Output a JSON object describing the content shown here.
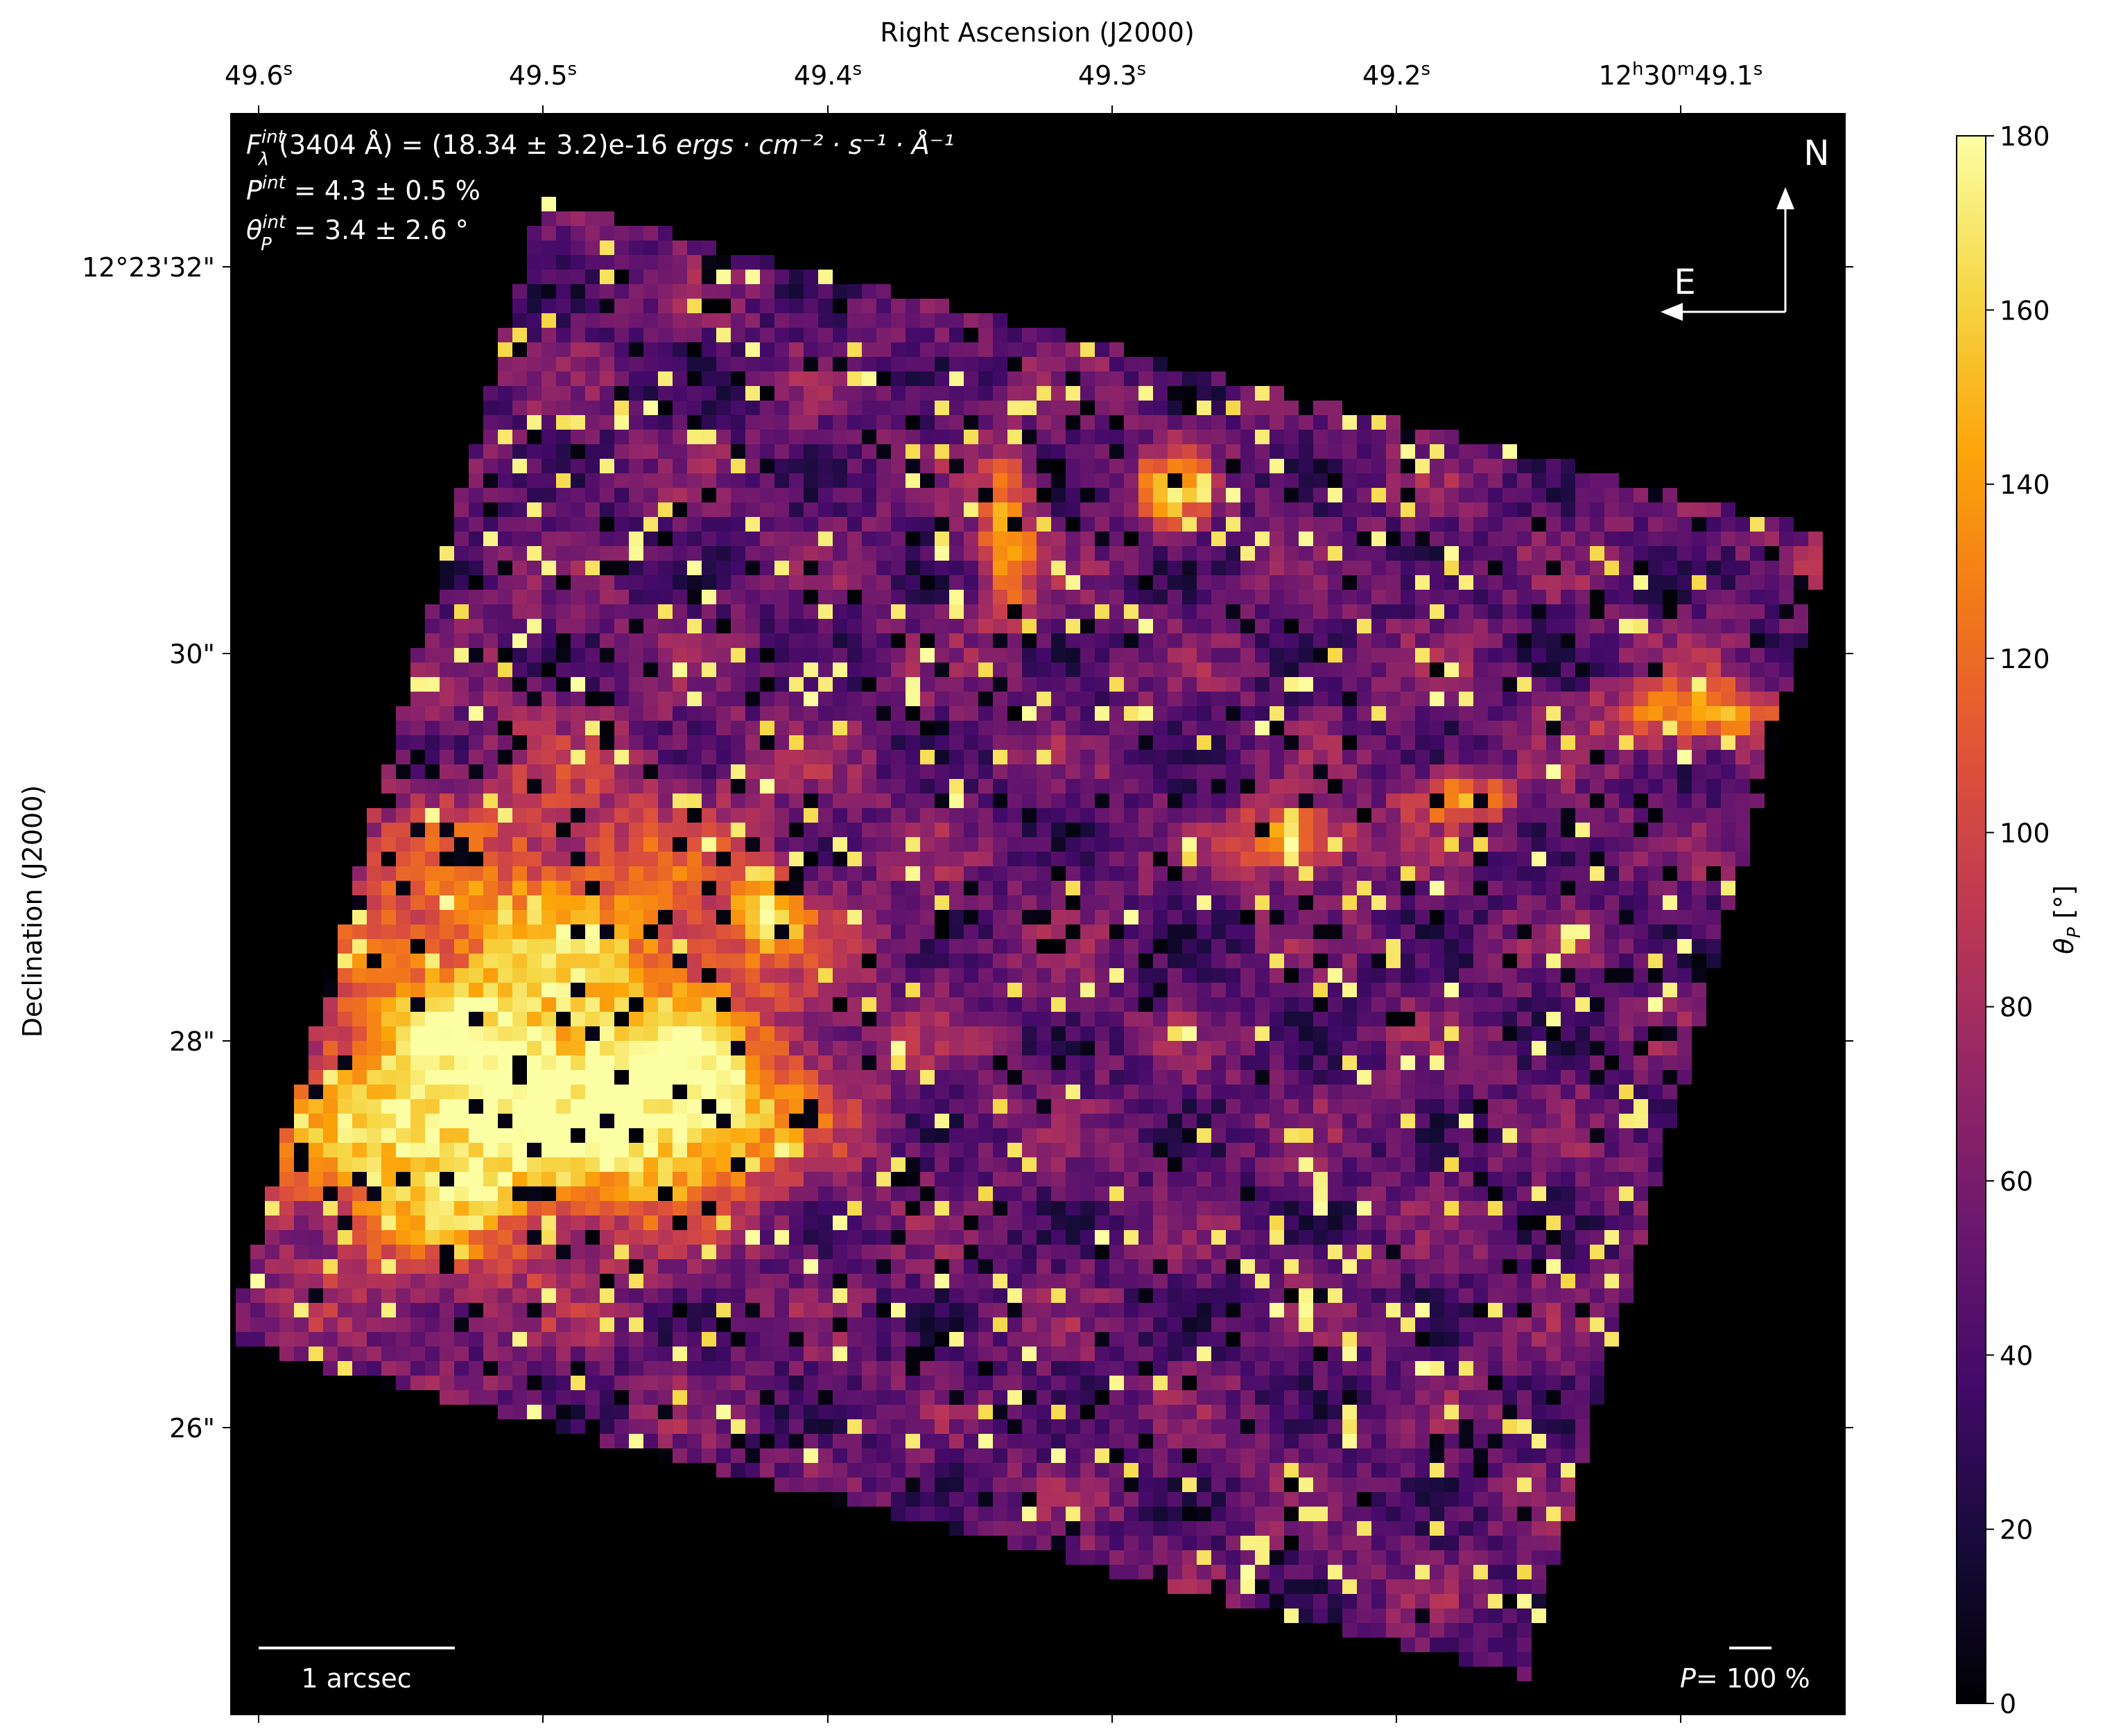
{
  "chart_data": {
    "type": "heatmap",
    "title": "",
    "top_xlabel": "Right Ascension (J2000)",
    "ylabel": "Declination (J2000)",
    "x_ticks": [
      {
        "label": "49.6",
        "sup": "s"
      },
      {
        "label": "49.5",
        "sup": "s"
      },
      {
        "label": "49.4",
        "sup": "s"
      },
      {
        "label": "49.3",
        "sup": "s"
      },
      {
        "label": "49.2",
        "sup": "s"
      },
      {
        "label": "12h30m49.1",
        "sup": "s",
        "full": "12ʰ30ᵐ49.1ˢ"
      }
    ],
    "y_ticks": [
      "12°23'32\"",
      "30\"",
      "28\"",
      "26\""
    ],
    "colorbar": {
      "label": "θP [°]",
      "label_math": "θ_P [°]",
      "range": [
        0,
        180
      ],
      "ticks": [
        0,
        20,
        40,
        60,
        80,
        100,
        120,
        140,
        160,
        180
      ],
      "colormap": "inferno"
    },
    "annotations": {
      "flux_line": "F_λ^int(3404 Å) = (18.34 ± 3.2)e-16 ergs·cm⁻²·s⁻¹·Å⁻¹",
      "flux_prefix": "F",
      "flux_body": "(3404 Å) = (18.34 ± 3.2)e-16 ",
      "flux_units": "ergs · cm⁻² · s⁻¹ · Å⁻¹",
      "pol_line": "P^int = 4.3 ± 0.5 %",
      "pol_prefix": "P",
      "pol_body": " = 4.3 ± 0.5 %",
      "angle_line": "θ_P^int = 3.4 ± 2.6 °",
      "angle_prefix": "θ",
      "angle_body": " = 3.4 ± 2.6 °",
      "sup_int": "int",
      "sub_lambda": "λ",
      "sub_P": "P",
      "compass_north": "N",
      "compass_east": "E",
      "scale_bar_label": "1 arcsec",
      "pol_scale_label": "P= 100 %",
      "pol_scale_prefix": "P",
      "pol_scale_body": "= 100 %"
    },
    "map_description_values": {
      "east_region_mean_angle_deg": 140,
      "west_region_mean_angle_deg": 45,
      "background_angle_deg": 0
    }
  }
}
